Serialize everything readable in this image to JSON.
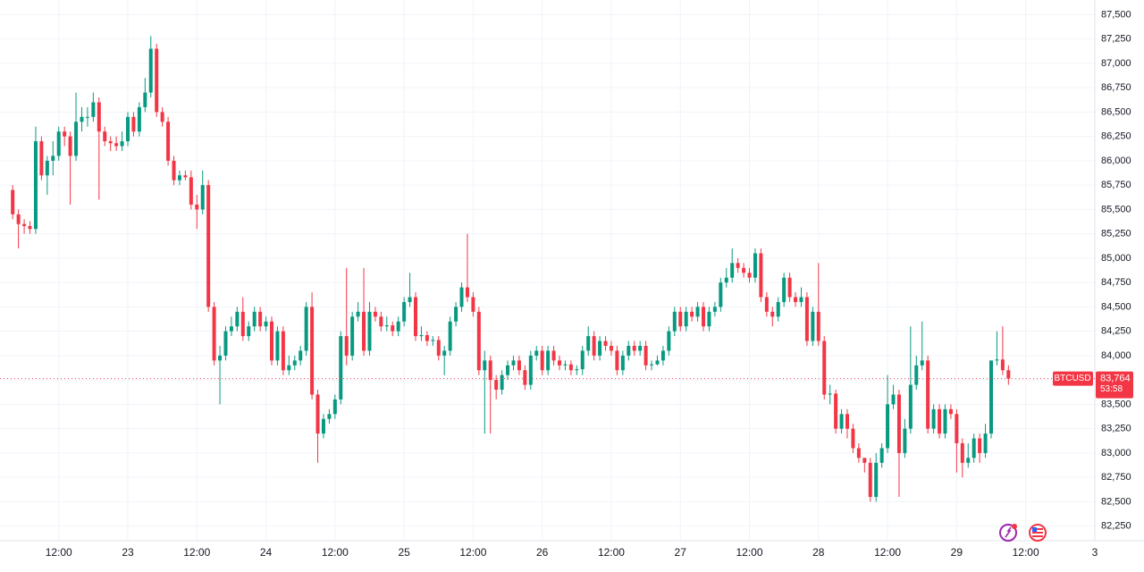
{
  "chart_data": {
    "type": "candlestick",
    "symbol": "BTCUSD",
    "last_price": {
      "value": 83764,
      "label": "83,764"
    },
    "countdown": "53:58",
    "up_color": "#089981",
    "down_color": "#f23645",
    "grid": true,
    "ylim": [
      82100,
      87650
    ],
    "yticks": [
      {
        "value": 82250,
        "label": "82,250"
      },
      {
        "value": 82500,
        "label": "82,500"
      },
      {
        "value": 82750,
        "label": "82,750"
      },
      {
        "value": 83000,
        "label": "83,000"
      },
      {
        "value": 83250,
        "label": "83,250"
      },
      {
        "value": 83500,
        "label": "83,500"
      },
      {
        "value": 83750,
        "label": "83,750"
      },
      {
        "value": 84000,
        "label": "84,000"
      },
      {
        "value": 84250,
        "label": "84,250"
      },
      {
        "value": 84500,
        "label": "84,500"
      },
      {
        "value": 84750,
        "label": "84,750"
      },
      {
        "value": 85000,
        "label": "85,000"
      },
      {
        "value": 85250,
        "label": "85,250"
      },
      {
        "value": 85500,
        "label": "85,500"
      },
      {
        "value": 85750,
        "label": "85,750"
      },
      {
        "value": 86000,
        "label": "86,000"
      },
      {
        "value": 86250,
        "label": "86,250"
      },
      {
        "value": 86500,
        "label": "86,500"
      },
      {
        "value": 86750,
        "label": "86,750"
      },
      {
        "value": 87000,
        "label": "87,000"
      },
      {
        "value": 87250,
        "label": "87,250"
      },
      {
        "value": 87500,
        "label": "87,500"
      }
    ],
    "categories": [
      null,
      null,
      null,
      null,
      null,
      null,
      null,
      null,
      "12:00",
      null,
      null,
      null,
      null,
      null,
      null,
      null,
      null,
      null,
      null,
      null,
      "23",
      null,
      null,
      null,
      null,
      null,
      null,
      null,
      null,
      null,
      null,
      null,
      "12:00",
      null,
      null,
      null,
      null,
      null,
      null,
      null,
      null,
      null,
      null,
      null,
      "24",
      null,
      null,
      null,
      null,
      null,
      null,
      null,
      null,
      null,
      null,
      null,
      "12:00",
      null,
      null,
      null,
      null,
      null,
      null,
      null,
      null,
      null,
      null,
      null,
      "25",
      null,
      null,
      null,
      null,
      null,
      null,
      null,
      null,
      null,
      null,
      null,
      "12:00",
      null,
      null,
      null,
      null,
      null,
      null,
      null,
      null,
      null,
      null,
      null,
      "26",
      null,
      null,
      null,
      null,
      null,
      null,
      null,
      null,
      null,
      null,
      null,
      "12:00",
      null,
      null,
      null,
      null,
      null,
      null,
      null,
      null,
      null,
      null,
      null,
      "27",
      null,
      null,
      null,
      null,
      null,
      null,
      null,
      null,
      null,
      null,
      null,
      "12:00",
      null,
      null,
      null,
      null,
      null,
      null,
      null,
      null,
      null,
      null,
      null,
      "28",
      null,
      null,
      null,
      null,
      null,
      null,
      null,
      null,
      null,
      null,
      null,
      "12:00",
      null,
      null,
      null,
      null,
      null,
      null,
      null,
      null,
      null,
      null,
      null,
      "29",
      null,
      null,
      null,
      null,
      null,
      null,
      null,
      null,
      null,
      null,
      null,
      "12:00",
      null,
      null,
      null,
      null,
      null,
      null,
      null,
      null,
      null,
      null,
      null,
      "3"
    ],
    "open": [
      85700,
      85450,
      85350,
      85330,
      85300,
      86200,
      85850,
      86000,
      86050,
      86300,
      86250,
      86050,
      86400,
      86450,
      86450,
      86600,
      86300,
      86200,
      86180,
      86150,
      86200,
      86450,
      86300,
      86550,
      86700,
      87150,
      86500,
      86400,
      86000,
      85800,
      85850,
      85830,
      85550,
      85500,
      85750,
      84500,
      83950,
      84000,
      84250,
      84300,
      84450,
      84200,
      84300,
      84450,
      84300,
      84350,
      83950,
      84250,
      83850,
      83900,
      83950,
      84050,
      84500,
      83600,
      83200,
      83350,
      83400,
      83550,
      84200,
      84000,
      84400,
      84450,
      84050,
      84450,
      84400,
      84300,
      84310,
      84250,
      84350,
      84550,
      84600,
      84200,
      84210,
      84150,
      84160,
      84000,
      84050,
      84350,
      84500,
      84700,
      84600,
      84450,
      83850,
      83950,
      83750,
      83650,
      83800,
      83900,
      83950,
      83850,
      83700,
      84000,
      84050,
      83850,
      84050,
      83950,
      83900,
      83910,
      83850,
      83860,
      84050,
      84200,
      84000,
      84150,
      84100,
      84050,
      83850,
      84000,
      84100,
      84050,
      84100,
      83900,
      83910,
      83950,
      84050,
      84250,
      84450,
      84300,
      84450,
      84400,
      84500,
      84300,
      84450,
      84500,
      84750,
      84800,
      84950,
      84900,
      84850,
      84800,
      85050,
      84600,
      84450,
      84400,
      84550,
      84800,
      84600,
      84550,
      84600,
      84150,
      84450,
      84150,
      83600,
      83610,
      83250,
      83400,
      83250,
      83050,
      82950,
      82900,
      82550,
      82900,
      83050,
      83500,
      83600,
      83000,
      83250,
      83700,
      83900,
      83950,
      83250,
      83450,
      83200,
      83450,
      83400,
      83100,
      82900,
      82950,
      83150,
      83000,
      83200,
      83950,
      83960,
      83850,
      null,
      null,
      null,
      null,
      null,
      null,
      null,
      null,
      null,
      null,
      null,
      null,
      null,
      null,
      null
    ],
    "high": [
      85750,
      85500,
      85400,
      85380,
      86350,
      86250,
      86050,
      86200,
      86350,
      86350,
      86300,
      86700,
      86550,
      86550,
      86700,
      86650,
      86350,
      86250,
      86250,
      86300,
      86500,
      86500,
      86600,
      86850,
      87280,
      87200,
      86550,
      86450,
      86050,
      85900,
      85900,
      85900,
      85650,
      85900,
      85800,
      84550,
      84100,
      84300,
      84400,
      84500,
      84600,
      84350,
      84500,
      84500,
      84400,
      84400,
      84300,
      84300,
      84000,
      84000,
      84100,
      84550,
      84650,
      83650,
      83400,
      83450,
      83600,
      84250,
      84900,
      84450,
      84550,
      84900,
      84550,
      84500,
      84450,
      84400,
      84350,
      84400,
      84600,
      84850,
      84650,
      84300,
      84250,
      84200,
      84200,
      84100,
      84400,
      84550,
      84750,
      85250,
      84650,
      84500,
      84050,
      84000,
      83800,
      83850,
      83950,
      84000,
      84000,
      83900,
      84050,
      84100,
      84100,
      84100,
      84100,
      84000,
      83950,
      83950,
      83900,
      84100,
      84300,
      84250,
      84200,
      84200,
      84150,
      84100,
      84050,
      84150,
      84150,
      84150,
      84150,
      83950,
      84000,
      84100,
      84300,
      84500,
      84500,
      84500,
      84500,
      84550,
      84550,
      84500,
      84550,
      84800,
      84900,
      85100,
      85000,
      84950,
      84900,
      85100,
      85100,
      84650,
      84500,
      84600,
      84850,
      84850,
      84650,
      84700,
      84650,
      84500,
      84950,
      84200,
      83700,
      83650,
      83450,
      83450,
      83300,
      83100,
      82950,
      82950,
      83000,
      83100,
      83800,
      83700,
      83650,
      83350,
      84300,
      84000,
      84350,
      84000,
      83500,
      83500,
      83500,
      83500,
      83450,
      83150,
      83100,
      83200,
      83200,
      83300,
      83950,
      84250,
      84300,
      83900,
      null,
      null,
      null,
      null,
      null,
      null,
      null,
      null,
      null,
      null,
      null,
      null,
      null,
      null,
      null
    ],
    "low": [
      85400,
      85100,
      85250,
      85250,
      85250,
      85800,
      85650,
      85850,
      86000,
      86150,
      85550,
      86000,
      86300,
      86350,
      86400,
      85600,
      86150,
      86100,
      86100,
      86100,
      86150,
      86250,
      86250,
      86500,
      86650,
      86450,
      86350,
      85950,
      85750,
      85750,
      85800,
      85500,
      85300,
      85450,
      84450,
      83900,
      83500,
      83950,
      84200,
      84250,
      84150,
      84150,
      84250,
      84250,
      84250,
      83900,
      83900,
      83800,
      83800,
      83850,
      83900,
      84000,
      83550,
      82900,
      83150,
      83300,
      83350,
      83500,
      83900,
      83950,
      84350,
      84000,
      84000,
      84350,
      84250,
      84250,
      84200,
      84200,
      84300,
      84500,
      84150,
      84150,
      84100,
      84100,
      83950,
      83800,
      84000,
      84300,
      84450,
      84550,
      84400,
      83800,
      83200,
      83200,
      83550,
      83600,
      83750,
      83850,
      83800,
      83650,
      83650,
      83950,
      83800,
      83800,
      83900,
      83850,
      83850,
      83800,
      83800,
      83800,
      84000,
      83950,
      83950,
      84050,
      84000,
      83800,
      83800,
      83950,
      84000,
      84000,
      83850,
      83850,
      83900,
      83900,
      84000,
      84200,
      84250,
      84250,
      84350,
      84350,
      84250,
      84250,
      84400,
      84450,
      84700,
      84750,
      84850,
      84800,
      84750,
      84750,
      84550,
      84400,
      84300,
      84350,
      84500,
      84550,
      84500,
      84500,
      84100,
      84100,
      84100,
      83550,
      83500,
      83200,
      83200,
      83150,
      83000,
      82900,
      82800,
      82500,
      82500,
      82850,
      83000,
      83450,
      82550,
      82950,
      83200,
      83650,
      83850,
      83200,
      83200,
      83150,
      83150,
      83350,
      82800,
      82750,
      82850,
      82900,
      82900,
      82950,
      83150,
      83900,
      83800,
      83700,
      null,
      null,
      null,
      null,
      null,
      null,
      null,
      null,
      null,
      null,
      null,
      null,
      null,
      null,
      null
    ],
    "close": [
      85450,
      85350,
      85330,
      85300,
      86200,
      85850,
      86000,
      86050,
      86300,
      86250,
      86050,
      86400,
      86450,
      86450,
      86600,
      86300,
      86200,
      86180,
      86150,
      86200,
      86450,
      86300,
      86550,
      86700,
      87150,
      86500,
      86400,
      86000,
      85800,
      85850,
      85830,
      85550,
      85500,
      85750,
      84500,
      83950,
      84000,
      84250,
      84300,
      84450,
      84200,
      84300,
      84450,
      84300,
      84350,
      83950,
      84250,
      83850,
      83900,
      83950,
      84050,
      84500,
      83600,
      83200,
      83350,
      83400,
      83550,
      84200,
      84000,
      84400,
      84450,
      84050,
      84450,
      84400,
      84300,
      84310,
      84250,
      84350,
      84550,
      84600,
      84200,
      84210,
      84150,
      84160,
      84000,
      84050,
      84350,
      84500,
      84700,
      84600,
      84450,
      83850,
      83950,
      83750,
      83650,
      83800,
      83900,
      83950,
      83850,
      83700,
      84000,
      84050,
      83850,
      84050,
      83950,
      83900,
      83910,
      83850,
      83860,
      84050,
      84200,
      84000,
      84150,
      84100,
      84050,
      83850,
      84000,
      84100,
      84050,
      84100,
      83900,
      83910,
      83950,
      84050,
      84250,
      84450,
      84300,
      84450,
      84400,
      84500,
      84300,
      84450,
      84500,
      84750,
      84800,
      84950,
      84900,
      84850,
      84800,
      85050,
      84600,
      84450,
      84400,
      84550,
      84800,
      84600,
      84550,
      84600,
      84150,
      84450,
      84150,
      83600,
      83610,
      83250,
      83400,
      83250,
      83050,
      82950,
      82900,
      82550,
      82900,
      83050,
      83500,
      83600,
      83000,
      83250,
      83700,
      83900,
      83950,
      83250,
      83450,
      83200,
      83450,
      83400,
      83100,
      82900,
      82950,
      83150,
      83000,
      83200,
      83950,
      83960,
      83850,
      83764,
      null,
      null,
      null,
      null,
      null,
      null,
      null,
      null,
      null,
      null,
      null,
      null,
      null,
      null,
      null
    ]
  }
}
